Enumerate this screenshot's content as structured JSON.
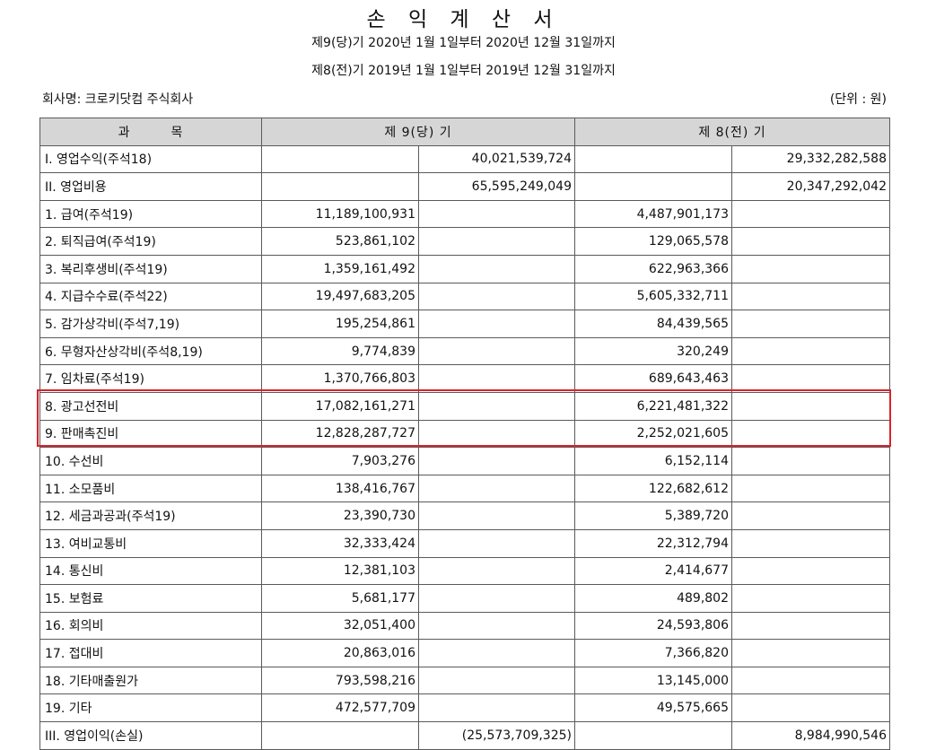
{
  "document": {
    "title": "손 익 계 산 서",
    "period_current": "제9(당)기 2020년 1월 1일부터 2020년 12월 31일까지",
    "period_prior": "제8(전)기 2019년 1월 1일부터 2019년 12월 31일까지",
    "company": "회사명: 크로키닷컴 주식회사",
    "unit": "(단위 : 원)"
  },
  "table": {
    "headers": {
      "account": "과　　　목",
      "current": "제 9(당) 기",
      "prior": "제 8(전) 기"
    },
    "rows": [
      {
        "label": "I. 영업수익(주석18)",
        "cur_detail": "",
        "cur_total": "40,021,539,724",
        "prev_detail": "",
        "prev_total": "29,332,282,588"
      },
      {
        "label": "II. 영업비용",
        "cur_detail": "",
        "cur_total": "65,595,249,049",
        "prev_detail": "",
        "prev_total": "20,347,292,042"
      },
      {
        "label": "1. 급여(주석19)",
        "cur_detail": "11,189,100,931",
        "cur_total": "",
        "prev_detail": "4,487,901,173",
        "prev_total": ""
      },
      {
        "label": "2. 퇴직급여(주석19)",
        "cur_detail": "523,861,102",
        "cur_total": "",
        "prev_detail": "129,065,578",
        "prev_total": ""
      },
      {
        "label": "3. 복리후생비(주석19)",
        "cur_detail": "1,359,161,492",
        "cur_total": "",
        "prev_detail": "622,963,366",
        "prev_total": ""
      },
      {
        "label": "4. 지급수수료(주석22)",
        "cur_detail": "19,497,683,205",
        "cur_total": "",
        "prev_detail": "5,605,332,711",
        "prev_total": ""
      },
      {
        "label": "5. 감가상각비(주석7,19)",
        "cur_detail": "195,254,861",
        "cur_total": "",
        "prev_detail": "84,439,565",
        "prev_total": ""
      },
      {
        "label": "6. 무형자산상각비(주석8,19)",
        "cur_detail": "9,774,839",
        "cur_total": "",
        "prev_detail": "320,249",
        "prev_total": ""
      },
      {
        "label": "7. 임차료(주석19)",
        "cur_detail": "1,370,766,803",
        "cur_total": "",
        "prev_detail": "689,643,463",
        "prev_total": ""
      },
      {
        "label": "8. 광고선전비",
        "cur_detail": "17,082,161,271",
        "cur_total": "",
        "prev_detail": "6,221,481,322",
        "prev_total": ""
      },
      {
        "label": "9. 판매촉진비",
        "cur_detail": "12,828,287,727",
        "cur_total": "",
        "prev_detail": "2,252,021,605",
        "prev_total": ""
      },
      {
        "label": "10. 수선비",
        "cur_detail": "7,903,276",
        "cur_total": "",
        "prev_detail": "6,152,114",
        "prev_total": ""
      },
      {
        "label": "11. 소모품비",
        "cur_detail": "138,416,767",
        "cur_total": "",
        "prev_detail": "122,682,612",
        "prev_total": ""
      },
      {
        "label": "12. 세금과공과(주석19)",
        "cur_detail": "23,390,730",
        "cur_total": "",
        "prev_detail": "5,389,720",
        "prev_total": ""
      },
      {
        "label": "13. 여비교통비",
        "cur_detail": "32,333,424",
        "cur_total": "",
        "prev_detail": "22,312,794",
        "prev_total": ""
      },
      {
        "label": "14. 통신비",
        "cur_detail": "12,381,103",
        "cur_total": "",
        "prev_detail": "2,414,677",
        "prev_total": ""
      },
      {
        "label": "15. 보험료",
        "cur_detail": "5,681,177",
        "cur_total": "",
        "prev_detail": "489,802",
        "prev_total": ""
      },
      {
        "label": "16. 회의비",
        "cur_detail": "32,051,400",
        "cur_total": "",
        "prev_detail": "24,593,806",
        "prev_total": ""
      },
      {
        "label": "17. 접대비",
        "cur_detail": "20,863,016",
        "cur_total": "",
        "prev_detail": "7,366,820",
        "prev_total": ""
      },
      {
        "label": "18. 기타매출원가",
        "cur_detail": "793,598,216",
        "cur_total": "",
        "prev_detail": "13,145,000",
        "prev_total": ""
      },
      {
        "label": "19. 기타",
        "cur_detail": "472,577,709",
        "cur_total": "",
        "prev_detail": "49,575,665",
        "prev_total": ""
      },
      {
        "label": "III. 영업이익(손실)",
        "cur_detail": "",
        "cur_total": "(25,573,709,325)",
        "prev_detail": "",
        "prev_total": "8,984,990,546"
      }
    ]
  },
  "highlight": {
    "rows": [
      "8. 광고선전비",
      "9. 판매촉진비"
    ],
    "color": "#d9222a"
  }
}
